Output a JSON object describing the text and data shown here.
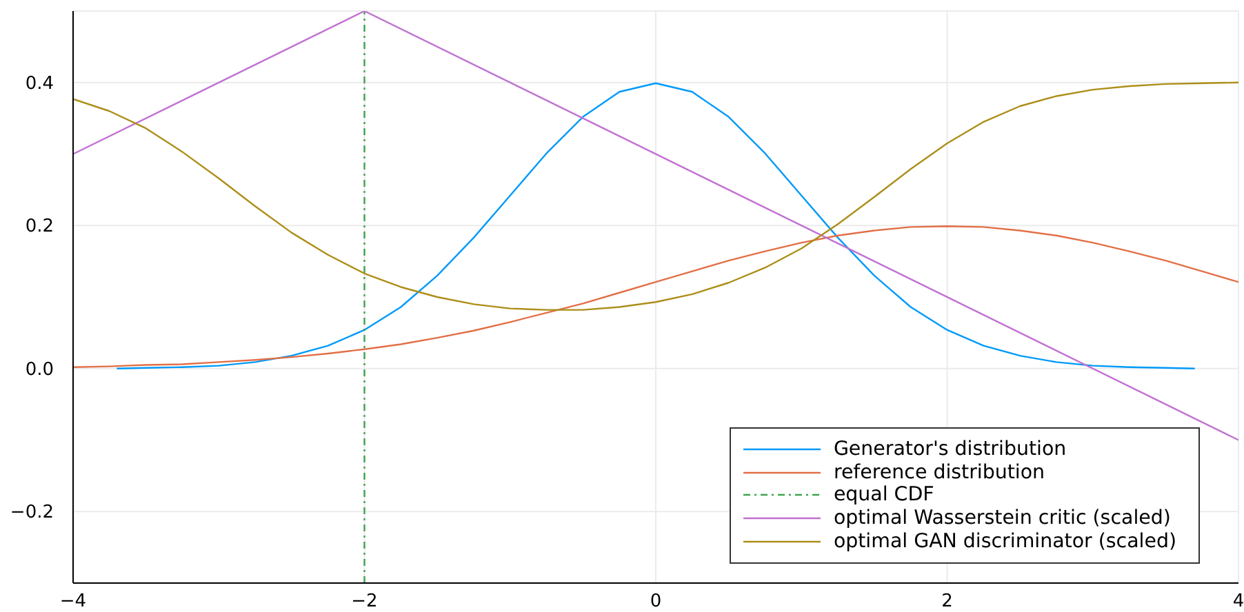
{
  "chart_data": {
    "type": "line",
    "xlim": [
      -4,
      4
    ],
    "ylim": [
      -0.3,
      0.5
    ],
    "xticks": [
      {
        "value": -4,
        "label": "−4"
      },
      {
        "value": -2,
        "label": "−2"
      },
      0,
      2,
      4
    ],
    "yticks": [
      {
        "value": -0.2,
        "label": "−0.2"
      },
      {
        "value": 0,
        "label": "0.0"
      },
      0.2,
      0.4
    ],
    "grid": true,
    "legend": "bottom right",
    "series": [
      {
        "name": "Generator's distribution",
        "color": "#009af9",
        "x": [
          -3.7,
          -3.5,
          -3.25,
          -3,
          -2.75,
          -2.5,
          -2.25,
          -2,
          -1.75,
          -1.5,
          -1.25,
          -1,
          -0.75,
          -0.5,
          -0.25,
          0,
          0.25,
          0.5,
          0.75,
          1,
          1.25,
          1.5,
          1.75,
          2,
          2.25,
          2.5,
          2.75,
          3,
          3.25,
          3.5,
          3.7
        ],
        "values": [
          0.0,
          0.001,
          0.002,
          0.004,
          0.009,
          0.018,
          0.032,
          0.054,
          0.086,
          0.13,
          0.183,
          0.242,
          0.301,
          0.352,
          0.387,
          0.399,
          0.387,
          0.352,
          0.301,
          0.242,
          0.183,
          0.13,
          0.086,
          0.054,
          0.032,
          0.018,
          0.009,
          0.004,
          0.002,
          0.001,
          0.0
        ]
      },
      {
        "name": "reference distribution",
        "color": "#e26f46",
        "x": [
          -4,
          -3.75,
          -3.5,
          -3.25,
          -3,
          -2.75,
          -2.5,
          -2.25,
          -2,
          -1.75,
          -1.5,
          -1.25,
          -1,
          -0.75,
          -0.5,
          -0.25,
          0,
          0.25,
          0.5,
          0.75,
          1,
          1.25,
          1.5,
          1.75,
          2,
          2.25,
          2.5,
          2.75,
          3,
          3.25,
          3.5,
          3.75,
          4
        ],
        "values": [
          0.002,
          0.003,
          0.005,
          0.006,
          0.009,
          0.012,
          0.016,
          0.021,
          0.027,
          0.034,
          0.043,
          0.053,
          0.065,
          0.078,
          0.091,
          0.106,
          0.121,
          0.136,
          0.151,
          0.164,
          0.176,
          0.186,
          0.193,
          0.198,
          0.199,
          0.198,
          0.193,
          0.186,
          0.176,
          0.164,
          0.151,
          0.136,
          0.121
        ]
      },
      {
        "name": "equal CDF",
        "color": "#3da44d",
        "line_style": "dashdot",
        "x": [
          -2,
          -2
        ],
        "values": [
          -0.3,
          0.5
        ]
      },
      {
        "name": "optimal Wasserstein critic (scaled)",
        "color": "#c271d2",
        "x": [
          -4,
          -2,
          4
        ],
        "values": [
          0.3,
          0.5,
          -0.1
        ]
      },
      {
        "name": "optimal GAN discriminator (scaled)",
        "color": "#ac8e18",
        "x": [
          -4,
          -3.75,
          -3.5,
          -3.25,
          -3,
          -2.75,
          -2.5,
          -2.25,
          -2,
          -1.75,
          -1.5,
          -1.25,
          -1,
          -0.75,
          -0.5,
          -0.25,
          0,
          0.25,
          0.5,
          0.75,
          1,
          1.25,
          1.5,
          1.75,
          2,
          2.25,
          2.5,
          2.75,
          3,
          3.25,
          3.5,
          3.75,
          4
        ],
        "values": [
          0.377,
          0.36,
          0.336,
          0.303,
          0.266,
          0.227,
          0.19,
          0.159,
          0.133,
          0.114,
          0.1,
          0.09,
          0.084,
          0.082,
          0.082,
          0.086,
          0.093,
          0.104,
          0.12,
          0.141,
          0.168,
          0.202,
          0.24,
          0.279,
          0.315,
          0.345,
          0.367,
          0.381,
          0.39,
          0.395,
          0.398,
          0.399,
          0.4
        ]
      }
    ]
  }
}
